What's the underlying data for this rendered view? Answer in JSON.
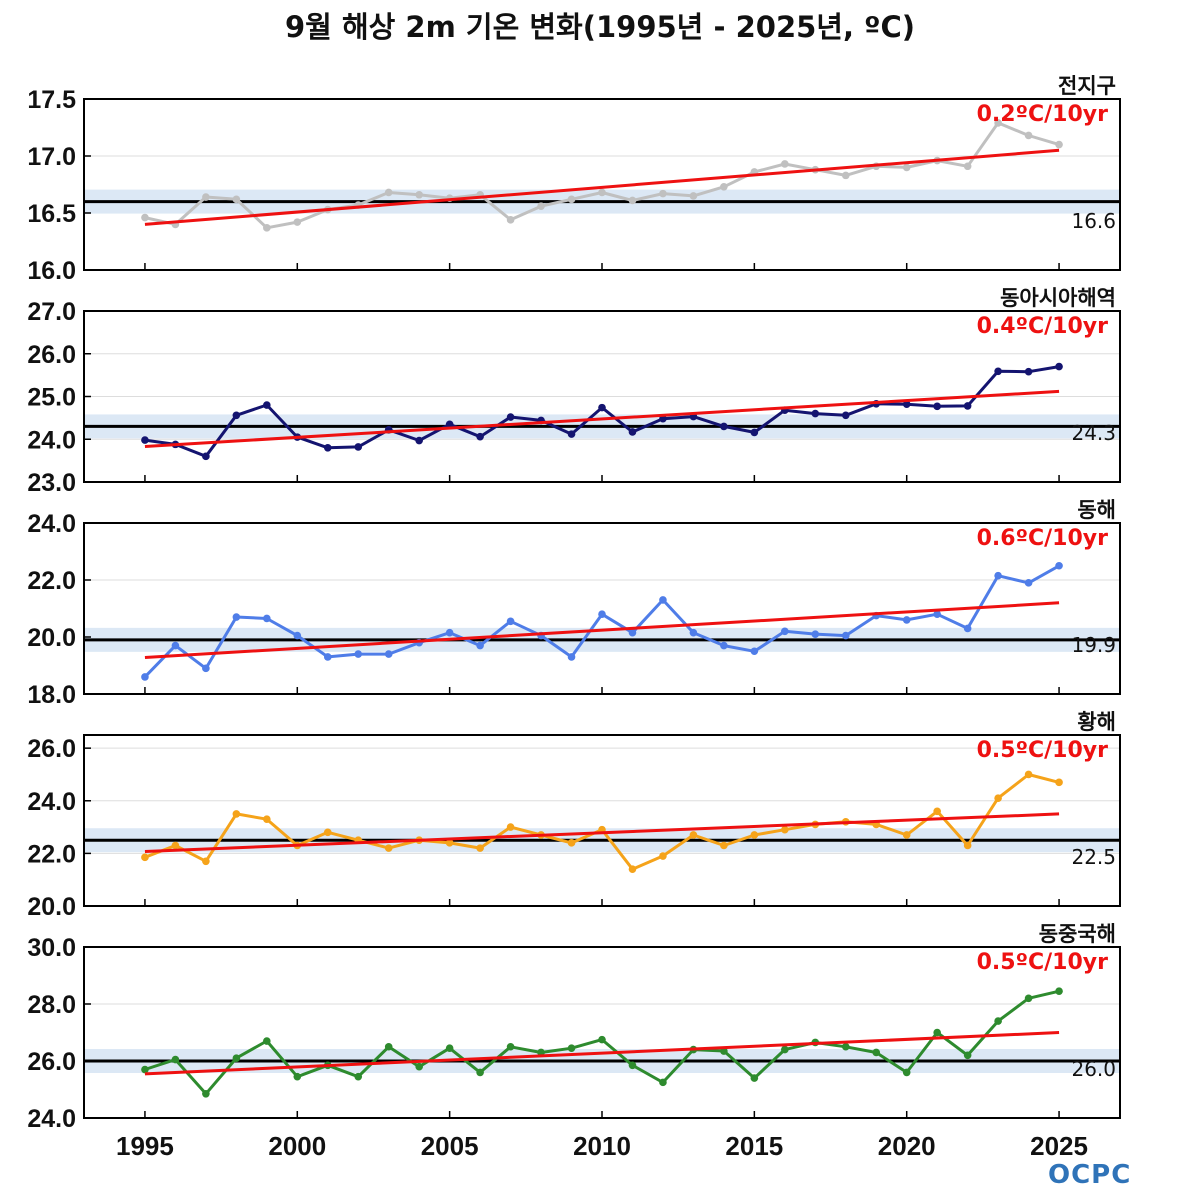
{
  "title": "9월 해상 2m 기온 변화(1995년 - 2025년, ºC)",
  "logo_text": "OCPC",
  "chart_data": [
    {
      "type": "line",
      "region": "전지구",
      "trend_label": "0.2ºC/10yr",
      "climatology": 16.6,
      "climatology_label": "16.6",
      "ylim": [
        16.0,
        17.5
      ],
      "yticks": [
        "16.0",
        "16.5",
        "17.0",
        "17.5"
      ],
      "color": "#c0c0c0",
      "x": [
        1995,
        1996,
        1997,
        1998,
        1999,
        2000,
        2001,
        2002,
        2003,
        2004,
        2005,
        2006,
        2007,
        2008,
        2009,
        2010,
        2011,
        2012,
        2013,
        2014,
        2015,
        2016,
        2017,
        2018,
        2019,
        2020,
        2021,
        2022,
        2023,
        2024,
        2025
      ],
      "values": [
        16.46,
        16.4,
        16.64,
        16.62,
        16.37,
        16.42,
        16.53,
        16.57,
        16.68,
        16.66,
        16.63,
        16.66,
        16.44,
        16.56,
        16.62,
        16.68,
        16.61,
        16.67,
        16.65,
        16.73,
        16.86,
        16.93,
        16.88,
        16.83,
        16.91,
        16.9,
        16.96,
        16.91,
        17.29,
        17.18,
        17.1
      ],
      "trend": [
        16.4,
        17.05
      ]
    },
    {
      "type": "line",
      "region": "동아시아해역",
      "trend_label": "0.4ºC/10yr",
      "climatology": 24.3,
      "climatology_label": "24.3",
      "ylim": [
        23.0,
        27.0
      ],
      "yticks": [
        "23.0",
        "24.0",
        "25.0",
        "26.0",
        "27.0"
      ],
      "color": "#141470",
      "x": [
        1995,
        1996,
        1997,
        1998,
        1999,
        2000,
        2001,
        2002,
        2003,
        2004,
        2005,
        2006,
        2007,
        2008,
        2009,
        2010,
        2011,
        2012,
        2013,
        2014,
        2015,
        2016,
        2017,
        2018,
        2019,
        2020,
        2021,
        2022,
        2023,
        2024,
        2025
      ],
      "values": [
        23.98,
        23.88,
        23.6,
        24.56,
        24.8,
        24.05,
        23.8,
        23.82,
        24.22,
        23.97,
        24.35,
        24.06,
        24.52,
        24.44,
        24.12,
        24.74,
        24.17,
        24.48,
        24.53,
        24.3,
        24.16,
        24.68,
        24.6,
        24.56,
        24.83,
        24.82,
        24.77,
        24.78,
        25.59,
        25.58,
        25.7
      ],
      "trend": [
        23.83,
        25.12
      ]
    },
    {
      "type": "line",
      "region": "동해",
      "trend_label": "0.6ºC/10yr",
      "climatology": 19.9,
      "climatology_label": "19.9",
      "ylim": [
        18.0,
        24.0
      ],
      "yticks": [
        "18.0",
        "20.0",
        "22.0",
        "24.0"
      ],
      "color": "#4f7de8",
      "x": [
        1995,
        1996,
        1997,
        1998,
        1999,
        2000,
        2001,
        2002,
        2003,
        2004,
        2005,
        2006,
        2007,
        2008,
        2009,
        2010,
        2011,
        2012,
        2013,
        2014,
        2015,
        2016,
        2017,
        2018,
        2019,
        2020,
        2021,
        2022,
        2023,
        2024,
        2025
      ],
      "values": [
        18.6,
        19.7,
        18.9,
        20.7,
        20.65,
        20.05,
        19.3,
        19.4,
        19.4,
        19.8,
        20.15,
        19.7,
        20.55,
        20.05,
        19.3,
        20.8,
        20.15,
        21.3,
        20.15,
        19.7,
        19.5,
        20.2,
        20.1,
        20.05,
        20.75,
        20.6,
        20.8,
        20.3,
        22.15,
        21.9,
        22.5
      ],
      "trend": [
        19.28,
        21.2
      ]
    },
    {
      "type": "line",
      "region": "황해",
      "trend_label": "0.5ºC/10yr",
      "climatology": 22.5,
      "climatology_label": "22.5",
      "ylim": [
        20.0,
        26.5
      ],
      "yticks": [
        "20.0",
        "22.0",
        "24.0",
        "26.0"
      ],
      "color": "#f5a31a",
      "x": [
        1995,
        1996,
        1997,
        1998,
        1999,
        2000,
        2001,
        2002,
        2003,
        2004,
        2005,
        2006,
        2007,
        2008,
        2009,
        2010,
        2011,
        2012,
        2013,
        2014,
        2015,
        2016,
        2017,
        2018,
        2019,
        2020,
        2021,
        2022,
        2023,
        2024,
        2025
      ],
      "values": [
        21.85,
        22.3,
        21.7,
        23.5,
        23.3,
        22.3,
        22.8,
        22.5,
        22.2,
        22.5,
        22.4,
        22.2,
        23.0,
        22.7,
        22.4,
        22.9,
        21.4,
        21.9,
        22.7,
        22.3,
        22.7,
        22.9,
        23.1,
        23.2,
        23.1,
        22.7,
        23.6,
        22.3,
        24.1,
        25.0,
        24.7
      ],
      "trend": [
        22.07,
        23.5
      ]
    },
    {
      "type": "line",
      "region": "동중국해",
      "trend_label": "0.5ºC/10yr",
      "climatology": 26.0,
      "climatology_label": "26.0",
      "ylim": [
        24.0,
        30.0
      ],
      "yticks": [
        "24.0",
        "26.0",
        "28.0",
        "30.0"
      ],
      "color": "#2e8b2e",
      "x": [
        1995,
        1996,
        1997,
        1998,
        1999,
        2000,
        2001,
        2002,
        2003,
        2004,
        2005,
        2006,
        2007,
        2008,
        2009,
        2010,
        2011,
        2012,
        2013,
        2014,
        2015,
        2016,
        2017,
        2018,
        2019,
        2020,
        2021,
        2022,
        2023,
        2024,
        2025
      ],
      "values": [
        25.7,
        26.05,
        24.85,
        26.1,
        26.7,
        25.45,
        25.85,
        25.45,
        26.5,
        25.8,
        26.45,
        25.6,
        26.5,
        26.3,
        26.45,
        26.75,
        25.85,
        25.25,
        26.4,
        26.35,
        25.4,
        26.4,
        26.65,
        26.5,
        26.3,
        25.6,
        27.0,
        26.2,
        27.4,
        28.2,
        28.45
      ],
      "trend": [
        25.55,
        27.0
      ]
    }
  ],
  "xaxis": {
    "xlim": [
      1993,
      2027
    ],
    "ticks": [
      "1995",
      "2000",
      "2005",
      "2010",
      "2015",
      "2020",
      "2025"
    ]
  }
}
